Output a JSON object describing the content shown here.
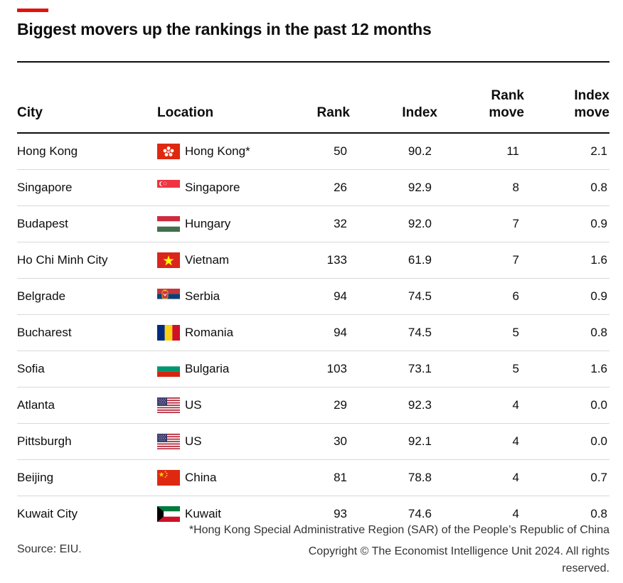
{
  "title": "Biggest movers up the rankings in the past 12 months",
  "colors": {
    "accent": "#e3120b",
    "rule": "#0d0d0d",
    "row_divider": "#d9d9d9"
  },
  "chart_data": {
    "type": "table",
    "title": "Biggest movers up the rankings in the past 12 months",
    "columns": [
      "City",
      "Location",
      "Rank",
      "Index",
      "Rank\nmove",
      "Index\nmove"
    ],
    "rows": [
      {
        "city": "Hong Kong",
        "location": "Hong Kong*",
        "flag": "hong-kong",
        "rank": "50",
        "index": "90.2",
        "rank_move": "11",
        "index_move": "2.1"
      },
      {
        "city": "Singapore",
        "location": "Singapore",
        "flag": "singapore",
        "rank": "26",
        "index": "92.9",
        "rank_move": "8",
        "index_move": "0.8"
      },
      {
        "city": "Budapest",
        "location": "Hungary",
        "flag": "hungary",
        "rank": "32",
        "index": "92.0",
        "rank_move": "7",
        "index_move": "0.9"
      },
      {
        "city": "Ho Chi Minh City",
        "location": "Vietnam",
        "flag": "vietnam",
        "rank": "133",
        "index": "61.9",
        "rank_move": "7",
        "index_move": "1.6"
      },
      {
        "city": "Belgrade",
        "location": "Serbia",
        "flag": "serbia",
        "rank": "94",
        "index": "74.5",
        "rank_move": "6",
        "index_move": "0.9"
      },
      {
        "city": "Bucharest",
        "location": "Romania",
        "flag": "romania",
        "rank": "94",
        "index": "74.5",
        "rank_move": "5",
        "index_move": "0.8"
      },
      {
        "city": "Sofia",
        "location": "Bulgaria",
        "flag": "bulgaria",
        "rank": "103",
        "index": "73.1",
        "rank_move": "5",
        "index_move": "1.6"
      },
      {
        "city": "Atlanta",
        "location": "US",
        "flag": "us",
        "rank": "29",
        "index": "92.3",
        "rank_move": "4",
        "index_move": "0.0"
      },
      {
        "city": "Pittsburgh",
        "location": "US",
        "flag": "us",
        "rank": "30",
        "index": "92.1",
        "rank_move": "4",
        "index_move": "0.0"
      },
      {
        "city": "Beijing",
        "location": "China",
        "flag": "china",
        "rank": "81",
        "index": "78.8",
        "rank_move": "4",
        "index_move": "0.7"
      },
      {
        "city": "Kuwait City",
        "location": "Kuwait",
        "flag": "kuwait",
        "rank": "93",
        "index": "74.6",
        "rank_move": "4",
        "index_move": "0.8"
      }
    ]
  },
  "footnote": "*Hong Kong Special Administrative Region (SAR) of the People’s Republic of China",
  "source": "Source: EIU.",
  "copyright": "Copyright © The Economist Intelligence Unit 2024. All rights reserved."
}
